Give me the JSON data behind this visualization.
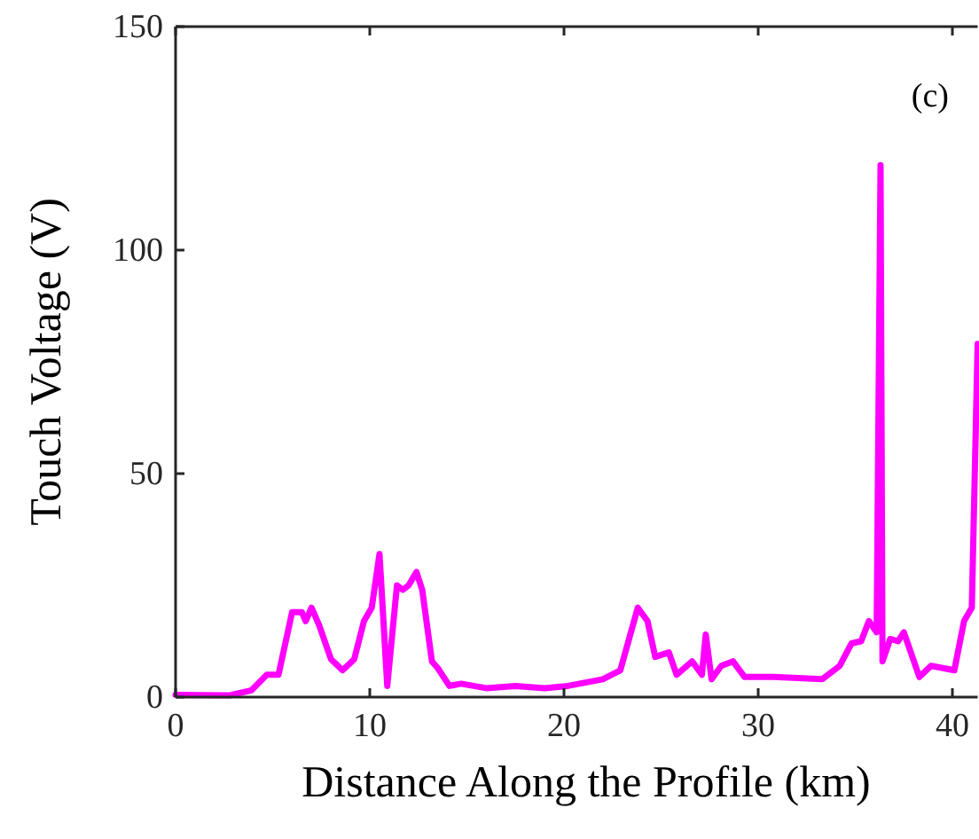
{
  "chart_data": {
    "type": "line",
    "xlabel": "Distance Along the Profile (km)",
    "ylabel": "Touch Voltage (V)",
    "annotations": [
      "(c)"
    ],
    "xlim": [
      0,
      41.3
    ],
    "xticks": [
      0,
      10,
      20,
      30,
      40
    ],
    "ylim": [
      0,
      150
    ],
    "yticks": [
      0,
      50,
      100,
      150
    ],
    "grid": false,
    "series": [
      {
        "color": "#ff00ff",
        "x": [
          0,
          2.8,
          3.9,
          4.7,
          5.3,
          6.0,
          6.5,
          6.7,
          7.0,
          7.4,
          8.0,
          8.6,
          9.2,
          9.7,
          10.1,
          10.5,
          10.9,
          11.4,
          11.7,
          12.0,
          12.4,
          12.7,
          13.2,
          13.5,
          14.1,
          14.7,
          16,
          17.5,
          19,
          20.2,
          22.0,
          22.9,
          23.8,
          24.3,
          24.7,
          25.4,
          25.8,
          26.6,
          27.1,
          27.3,
          27.6,
          28.1,
          28.7,
          29.3,
          30.8,
          33.3,
          34.2,
          34.8,
          35.3,
          35.7,
          36.1,
          36.3,
          36.4,
          36.8,
          37.2,
          37.5,
          38.3,
          38.9,
          40.1,
          40.6,
          41.0,
          41.3
        ],
        "values": [
          0.5,
          0.4,
          1.5,
          5,
          5,
          19,
          19,
          17,
          20,
          16,
          8.5,
          6,
          8.5,
          17,
          20,
          32,
          2.5,
          25,
          24,
          25,
          28,
          24,
          8,
          6.5,
          2.5,
          3,
          2,
          2.5,
          2,
          2.5,
          4,
          6,
          20,
          17,
          9,
          10,
          5,
          8,
          5,
          14,
          4,
          7,
          8,
          4.5,
          4.5,
          4,
          7,
          12,
          12.5,
          17,
          14.5,
          119,
          8,
          13,
          12.5,
          14.5,
          4.5,
          7,
          6,
          17,
          20,
          79
        ]
      }
    ]
  }
}
